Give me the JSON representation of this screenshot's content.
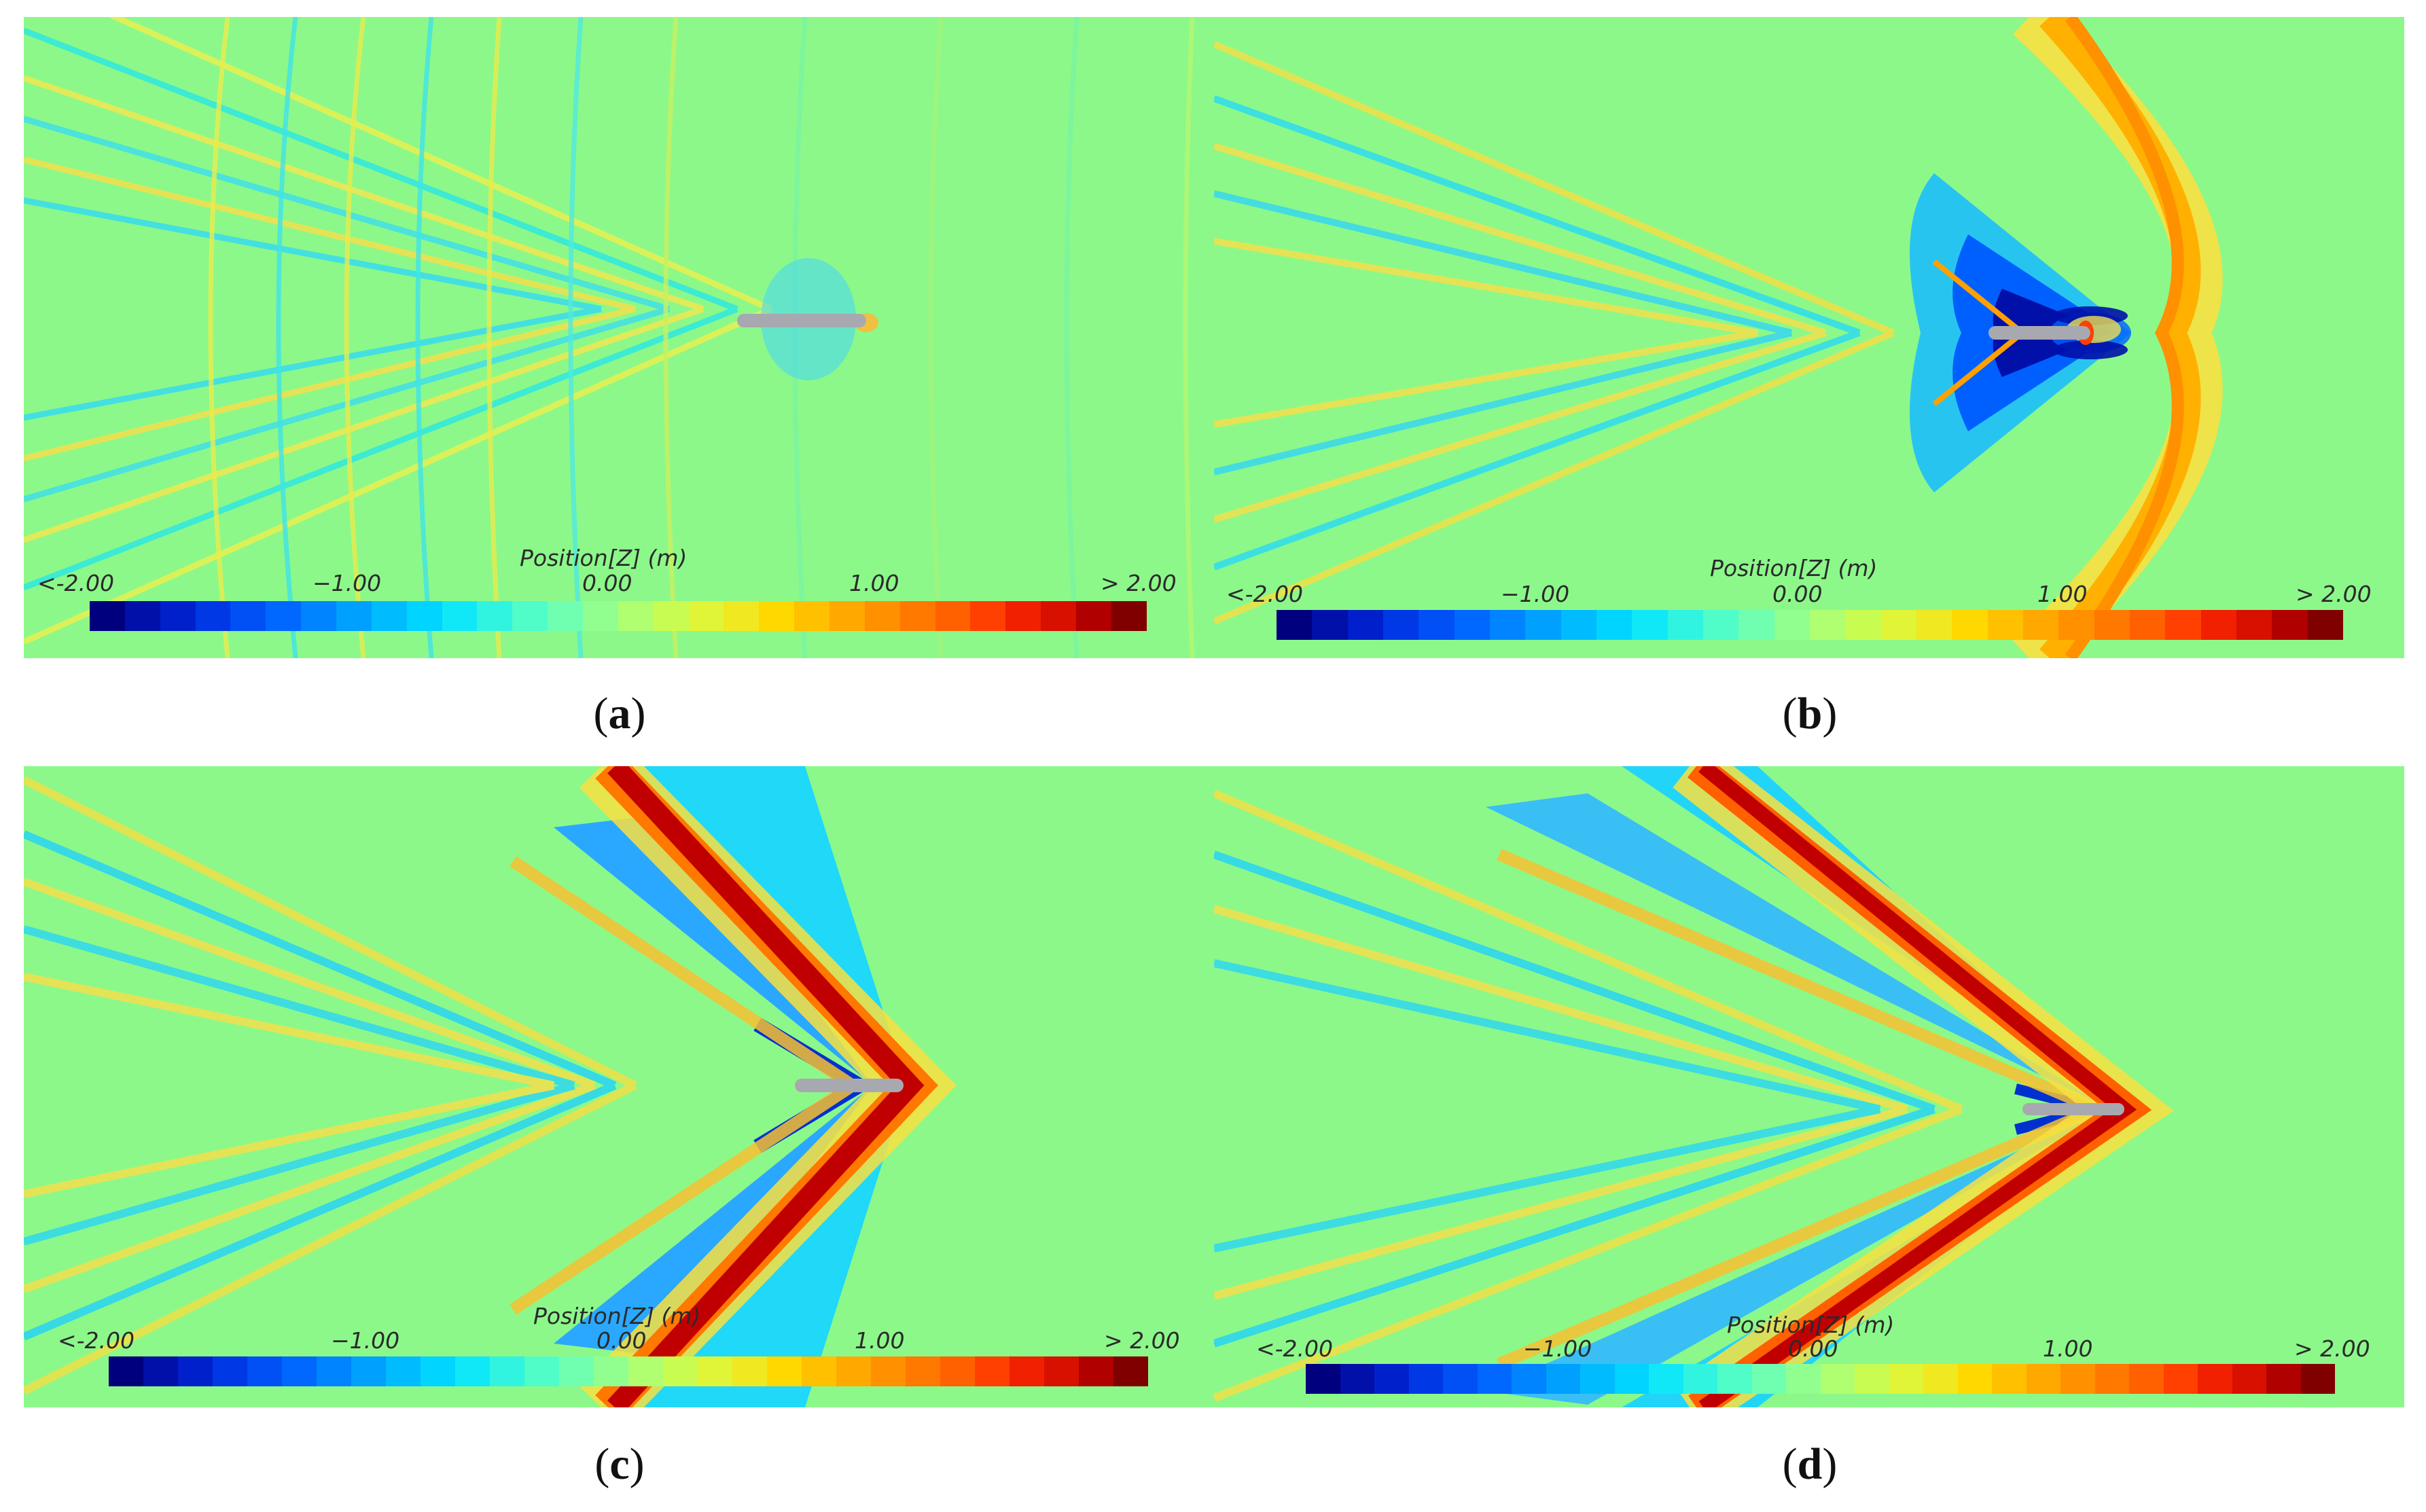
{
  "colorbar": {
    "title": "Position[Z] (m)",
    "ticks": [
      "<-2.00",
      "−1.00",
      "0.00",
      "1.00",
      "> 2.00"
    ],
    "colors": [
      "#00007f",
      "#0010a8",
      "#0020cc",
      "#0038e6",
      "#0050f5",
      "#0068ff",
      "#0084ff",
      "#00a0ff",
      "#00bcff",
      "#00d4ff",
      "#10e8f8",
      "#30f4e0",
      "#50fcc8",
      "#70ffb0",
      "#90ff90",
      "#b0ff70",
      "#c8fc50",
      "#e0f438",
      "#f0e820",
      "#ffd800",
      "#ffc000",
      "#ffa800",
      "#ff9000",
      "#ff7800",
      "#ff6000",
      "#ff4000",
      "#f02000",
      "#d81000",
      "#b00000",
      "#800000"
    ]
  },
  "panels": [
    {
      "id": "a",
      "label": "a"
    },
    {
      "id": "b",
      "label": "b"
    },
    {
      "id": "c",
      "label": "c"
    },
    {
      "id": "d",
      "label": "d"
    }
  ]
}
